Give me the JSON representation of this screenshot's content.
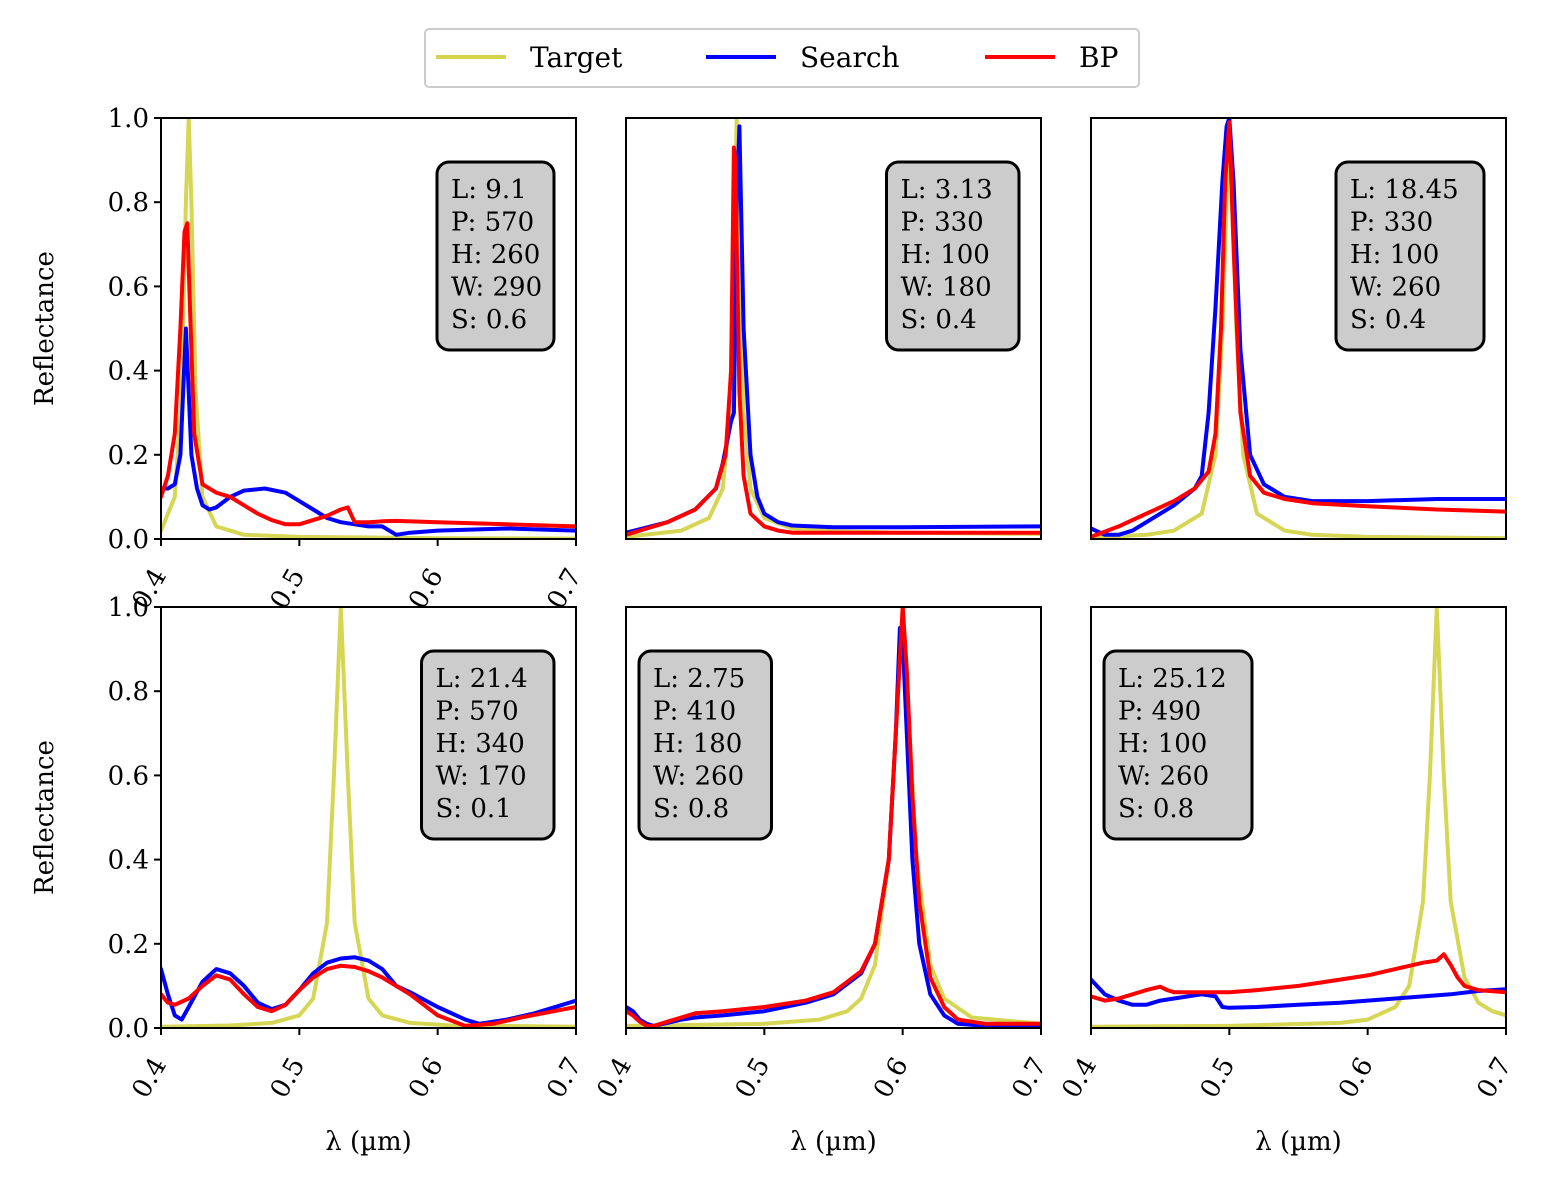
{
  "legend": {
    "entries": [
      {
        "label": "Target",
        "color": "#d4d44c"
      },
      {
        "label": "Search",
        "color": "#0000ff"
      },
      {
        "label": "BP",
        "color": "#ff0000"
      }
    ]
  },
  "chart_data": [
    {
      "type": "line",
      "xlabel": "",
      "ylabel": "Reflectance",
      "xlim": [
        0.4,
        0.7
      ],
      "ylim": [
        0.0,
        1.0
      ],
      "xticks": [
        "0.4",
        "0.5",
        "0.6",
        "0.7"
      ],
      "yticks": [
        "0.0",
        "0.2",
        "0.4",
        "0.6",
        "0.8",
        "1.0"
      ],
      "annotation": [
        "L: 9.1",
        "P: 570",
        "H: 260",
        "W: 290",
        "S: 0.6"
      ],
      "annotation_position": "top-right",
      "series": [
        {
          "name": "Target",
          "x": [
            0.4,
            0.41,
            0.415,
            0.418,
            0.42,
            0.422,
            0.425,
            0.43,
            0.44,
            0.46,
            0.5,
            0.6,
            0.7
          ],
          "y": [
            0.02,
            0.1,
            0.35,
            0.8,
            1.0,
            0.8,
            0.35,
            0.1,
            0.03,
            0.01,
            0.005,
            0.002,
            0.001
          ]
        },
        {
          "name": "Search",
          "x": [
            0.4,
            0.405,
            0.41,
            0.414,
            0.418,
            0.42,
            0.422,
            0.426,
            0.43,
            0.435,
            0.44,
            0.45,
            0.46,
            0.475,
            0.49,
            0.5,
            0.51,
            0.52,
            0.53,
            0.54,
            0.55,
            0.56,
            0.565,
            0.57,
            0.58,
            0.6,
            0.65,
            0.7
          ],
          "y": [
            0.12,
            0.12,
            0.13,
            0.2,
            0.5,
            0.35,
            0.2,
            0.12,
            0.08,
            0.07,
            0.075,
            0.1,
            0.115,
            0.12,
            0.11,
            0.09,
            0.07,
            0.05,
            0.04,
            0.035,
            0.03,
            0.03,
            0.02,
            0.01,
            0.015,
            0.02,
            0.025,
            0.02
          ]
        },
        {
          "name": "BP",
          "x": [
            0.4,
            0.405,
            0.41,
            0.414,
            0.417,
            0.419,
            0.421,
            0.424,
            0.43,
            0.44,
            0.45,
            0.46,
            0.47,
            0.48,
            0.49,
            0.5,
            0.51,
            0.52,
            0.53,
            0.535,
            0.54,
            0.55,
            0.56,
            0.57,
            0.6,
            0.65,
            0.7
          ],
          "y": [
            0.1,
            0.15,
            0.25,
            0.5,
            0.73,
            0.75,
            0.55,
            0.25,
            0.13,
            0.11,
            0.1,
            0.08,
            0.06,
            0.045,
            0.035,
            0.035,
            0.045,
            0.055,
            0.07,
            0.075,
            0.04,
            0.04,
            0.042,
            0.043,
            0.04,
            0.035,
            0.03
          ]
        }
      ]
    },
    {
      "type": "line",
      "xlabel": "",
      "ylabel": "",
      "xlim": [
        0.4,
        0.7
      ],
      "ylim": [
        0.0,
        1.0
      ],
      "xticks": [],
      "yticks": [],
      "annotation": [
        "L: 3.13",
        "P: 330",
        "H: 100",
        "W: 180",
        "S: 0.4"
      ],
      "annotation_position": "top-right",
      "series": [
        {
          "name": "Target",
          "x": [
            0.4,
            0.44,
            0.46,
            0.47,
            0.475,
            0.478,
            0.48,
            0.482,
            0.485,
            0.49,
            0.5,
            0.52,
            0.55,
            0.6,
            0.7
          ],
          "y": [
            0.005,
            0.02,
            0.05,
            0.12,
            0.3,
            0.7,
            1.0,
            0.7,
            0.3,
            0.12,
            0.05,
            0.025,
            0.018,
            0.015,
            0.012
          ]
        },
        {
          "name": "Search",
          "x": [
            0.4,
            0.43,
            0.45,
            0.465,
            0.47,
            0.476,
            0.478,
            0.48,
            0.482,
            0.485,
            0.49,
            0.495,
            0.5,
            0.51,
            0.52,
            0.55,
            0.6,
            0.7
          ],
          "y": [
            0.015,
            0.04,
            0.07,
            0.12,
            0.18,
            0.28,
            0.3,
            0.8,
            0.98,
            0.5,
            0.2,
            0.1,
            0.06,
            0.04,
            0.032,
            0.028,
            0.028,
            0.03
          ]
        },
        {
          "name": "BP",
          "x": [
            0.4,
            0.43,
            0.45,
            0.465,
            0.472,
            0.476,
            0.478,
            0.479,
            0.48,
            0.482,
            0.485,
            0.49,
            0.5,
            0.51,
            0.52,
            0.55,
            0.6,
            0.7
          ],
          "y": [
            0.01,
            0.04,
            0.07,
            0.12,
            0.2,
            0.4,
            0.93,
            0.9,
            0.7,
            0.35,
            0.15,
            0.06,
            0.03,
            0.02,
            0.015,
            0.015,
            0.015,
            0.015
          ]
        }
      ]
    },
    {
      "type": "line",
      "xlabel": "",
      "ylabel": "",
      "xlim": [
        0.4,
        0.7
      ],
      "ylim": [
        0.0,
        1.0
      ],
      "xticks": [],
      "yticks": [],
      "annotation": [
        "L: 18.45",
        "P: 330",
        "H: 100",
        "W: 260",
        "S: 0.4"
      ],
      "annotation_position": "top-right",
      "series": [
        {
          "name": "Target",
          "x": [
            0.4,
            0.44,
            0.46,
            0.48,
            0.49,
            0.495,
            0.5,
            0.505,
            0.51,
            0.52,
            0.54,
            0.56,
            0.6,
            0.7
          ],
          "y": [
            0.003,
            0.01,
            0.02,
            0.06,
            0.2,
            0.5,
            1.0,
            0.5,
            0.2,
            0.06,
            0.02,
            0.01,
            0.005,
            0.002
          ]
        },
        {
          "name": "Search",
          "x": [
            0.4,
            0.41,
            0.42,
            0.43,
            0.44,
            0.46,
            0.475,
            0.48,
            0.485,
            0.49,
            0.495,
            0.498,
            0.5,
            0.503,
            0.508,
            0.515,
            0.525,
            0.54,
            0.56,
            0.6,
            0.65,
            0.7
          ],
          "y": [
            0.025,
            0.01,
            0.01,
            0.02,
            0.04,
            0.08,
            0.12,
            0.15,
            0.3,
            0.55,
            0.85,
            0.98,
            1.0,
            0.85,
            0.45,
            0.2,
            0.13,
            0.1,
            0.09,
            0.09,
            0.095,
            0.095
          ]
        },
        {
          "name": "BP",
          "x": [
            0.4,
            0.42,
            0.44,
            0.46,
            0.475,
            0.485,
            0.49,
            0.494,
            0.497,
            0.5,
            0.503,
            0.508,
            0.515,
            0.525,
            0.54,
            0.56,
            0.6,
            0.65,
            0.7
          ],
          "y": [
            0.005,
            0.03,
            0.06,
            0.09,
            0.12,
            0.16,
            0.25,
            0.5,
            0.85,
            0.99,
            0.7,
            0.3,
            0.15,
            0.11,
            0.095,
            0.085,
            0.078,
            0.07,
            0.065
          ]
        }
      ]
    },
    {
      "type": "line",
      "xlabel": "λ (µm)",
      "ylabel": "Reflectance",
      "xlim": [
        0.4,
        0.7
      ],
      "ylim": [
        0.0,
        1.0
      ],
      "xticks": [
        "0.4",
        "0.5",
        "0.6",
        "0.7"
      ],
      "yticks": [
        "0.0",
        "0.2",
        "0.4",
        "0.6",
        "0.8",
        "1.0"
      ],
      "annotation": [
        "L: 21.4",
        "P: 570",
        "H: 340",
        "W: 170",
        "S: 0.1"
      ],
      "annotation_position": "top-right",
      "series": [
        {
          "name": "Target",
          "x": [
            0.4,
            0.45,
            0.48,
            0.5,
            0.51,
            0.52,
            0.525,
            0.53,
            0.535,
            0.54,
            0.55,
            0.56,
            0.58,
            0.61,
            0.7
          ],
          "y": [
            0.003,
            0.006,
            0.012,
            0.03,
            0.07,
            0.25,
            0.6,
            1.0,
            0.6,
            0.25,
            0.07,
            0.03,
            0.012,
            0.006,
            0.003
          ]
        },
        {
          "name": "Search",
          "x": [
            0.4,
            0.405,
            0.41,
            0.415,
            0.42,
            0.43,
            0.44,
            0.45,
            0.46,
            0.47,
            0.48,
            0.49,
            0.5,
            0.51,
            0.52,
            0.53,
            0.54,
            0.55,
            0.56,
            0.57,
            0.58,
            0.6,
            0.62,
            0.63,
            0.65,
            0.67,
            0.7
          ],
          "y": [
            0.14,
            0.08,
            0.03,
            0.02,
            0.05,
            0.11,
            0.14,
            0.13,
            0.1,
            0.06,
            0.045,
            0.055,
            0.09,
            0.13,
            0.155,
            0.165,
            0.168,
            0.16,
            0.14,
            0.1,
            0.085,
            0.05,
            0.02,
            0.01,
            0.02,
            0.035,
            0.065
          ]
        },
        {
          "name": "BP",
          "x": [
            0.4,
            0.405,
            0.41,
            0.42,
            0.43,
            0.44,
            0.45,
            0.46,
            0.47,
            0.48,
            0.49,
            0.5,
            0.51,
            0.52,
            0.53,
            0.54,
            0.55,
            0.56,
            0.58,
            0.6,
            0.62,
            0.64,
            0.66,
            0.7
          ],
          "y": [
            0.08,
            0.06,
            0.055,
            0.07,
            0.1,
            0.125,
            0.115,
            0.08,
            0.05,
            0.04,
            0.055,
            0.09,
            0.12,
            0.14,
            0.148,
            0.145,
            0.135,
            0.12,
            0.08,
            0.03,
            0.005,
            0.01,
            0.025,
            0.05
          ]
        }
      ]
    },
    {
      "type": "line",
      "xlabel": "λ (µm)",
      "ylabel": "",
      "xlim": [
        0.4,
        0.7
      ],
      "ylim": [
        0.0,
        1.0
      ],
      "xticks": [
        "0.4",
        "0.5",
        "0.6",
        "0.7"
      ],
      "yticks": [],
      "annotation": [
        "L: 2.75",
        "P: 410",
        "H: 180",
        "W: 260",
        "S: 0.8"
      ],
      "annotation_position": "top-left",
      "series": [
        {
          "name": "Target",
          "x": [
            0.4,
            0.5,
            0.54,
            0.56,
            0.57,
            0.58,
            0.59,
            0.595,
            0.6,
            0.605,
            0.61,
            0.62,
            0.63,
            0.65,
            0.7
          ],
          "y": [
            0.005,
            0.01,
            0.02,
            0.04,
            0.07,
            0.15,
            0.4,
            0.7,
            1.0,
            0.7,
            0.4,
            0.15,
            0.07,
            0.025,
            0.01
          ]
        },
        {
          "name": "Search",
          "x": [
            0.4,
            0.405,
            0.41,
            0.415,
            0.42,
            0.43,
            0.44,
            0.45,
            0.47,
            0.5,
            0.53,
            0.55,
            0.57,
            0.58,
            0.59,
            0.595,
            0.598,
            0.6,
            0.603,
            0.607,
            0.612,
            0.62,
            0.63,
            0.64,
            0.66,
            0.7
          ],
          "y": [
            0.05,
            0.04,
            0.02,
            0.01,
            0.005,
            0.012,
            0.02,
            0.025,
            0.03,
            0.04,
            0.06,
            0.08,
            0.13,
            0.2,
            0.4,
            0.7,
            0.95,
            0.92,
            0.7,
            0.4,
            0.2,
            0.08,
            0.03,
            0.01,
            0.005,
            0.005
          ]
        },
        {
          "name": "BP",
          "x": [
            0.4,
            0.405,
            0.41,
            0.415,
            0.42,
            0.43,
            0.44,
            0.45,
            0.47,
            0.5,
            0.53,
            0.55,
            0.57,
            0.58,
            0.59,
            0.595,
            0.6,
            0.603,
            0.607,
            0.612,
            0.62,
            0.63,
            0.64,
            0.66,
            0.7
          ],
          "y": [
            0.04,
            0.03,
            0.015,
            0.005,
            0.005,
            0.015,
            0.025,
            0.035,
            0.04,
            0.05,
            0.065,
            0.085,
            0.135,
            0.2,
            0.4,
            0.7,
            1.0,
            0.85,
            0.55,
            0.3,
            0.12,
            0.05,
            0.02,
            0.01,
            0.01
          ]
        }
      ]
    },
    {
      "type": "line",
      "xlabel": "λ (µm)",
      "ylabel": "",
      "xlim": [
        0.4,
        0.7
      ],
      "ylim": [
        0.0,
        1.0
      ],
      "xticks": [
        "0.4",
        "0.5",
        "0.6",
        "0.7"
      ],
      "yticks": [],
      "annotation": [
        "L: 25.12",
        "P: 490",
        "H: 100",
        "W: 260",
        "S: 0.8"
      ],
      "annotation_position": "top-left",
      "series": [
        {
          "name": "Target",
          "x": [
            0.4,
            0.5,
            0.58,
            0.6,
            0.62,
            0.63,
            0.64,
            0.645,
            0.65,
            0.655,
            0.66,
            0.67,
            0.68,
            0.69,
            0.7
          ],
          "y": [
            0.003,
            0.005,
            0.012,
            0.02,
            0.05,
            0.1,
            0.3,
            0.6,
            1.0,
            0.6,
            0.3,
            0.12,
            0.06,
            0.04,
            0.03
          ]
        },
        {
          "name": "Search",
          "x": [
            0.4,
            0.41,
            0.42,
            0.43,
            0.44,
            0.45,
            0.46,
            0.47,
            0.48,
            0.49,
            0.495,
            0.5,
            0.52,
            0.55,
            0.58,
            0.6,
            0.62,
            0.64,
            0.66,
            0.68,
            0.7
          ],
          "y": [
            0.115,
            0.08,
            0.065,
            0.055,
            0.055,
            0.065,
            0.07,
            0.075,
            0.08,
            0.075,
            0.05,
            0.048,
            0.05,
            0.055,
            0.06,
            0.065,
            0.07,
            0.075,
            0.08,
            0.088,
            0.092
          ]
        },
        {
          "name": "BP",
          "x": [
            0.4,
            0.41,
            0.42,
            0.43,
            0.44,
            0.45,
            0.455,
            0.46,
            0.48,
            0.5,
            0.52,
            0.55,
            0.58,
            0.6,
            0.62,
            0.64,
            0.65,
            0.655,
            0.66,
            0.665,
            0.67,
            0.68,
            0.7
          ],
          "y": [
            0.075,
            0.065,
            0.07,
            0.08,
            0.09,
            0.098,
            0.09,
            0.085,
            0.085,
            0.085,
            0.09,
            0.1,
            0.115,
            0.125,
            0.14,
            0.155,
            0.16,
            0.175,
            0.15,
            0.12,
            0.1,
            0.09,
            0.085
          ]
        }
      ]
    }
  ]
}
